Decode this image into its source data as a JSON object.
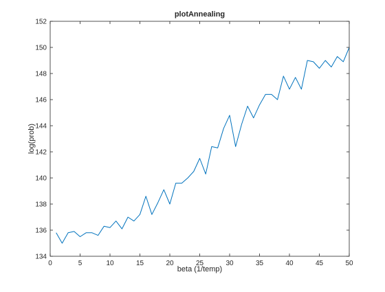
{
  "chart_data": {
    "type": "line",
    "title": "plotAnnealing",
    "xlabel": "beta (1/temp)",
    "ylabel": "log(prob)",
    "xlim": [
      0,
      50
    ],
    "ylim": [
      134,
      152
    ],
    "xticks": [
      0,
      5,
      10,
      15,
      20,
      25,
      30,
      35,
      40,
      45,
      50
    ],
    "yticks": [
      134,
      136,
      138,
      140,
      142,
      144,
      146,
      148,
      150,
      152
    ],
    "grid": false,
    "box": true,
    "series": [
      {
        "color": "#0072bd",
        "x": [
          1,
          2,
          3,
          4,
          5,
          6,
          7,
          8,
          9,
          10,
          11,
          12,
          13,
          14,
          15,
          16,
          17,
          18,
          19,
          20,
          21,
          22,
          23,
          24,
          25,
          26,
          27,
          28,
          29,
          30,
          31,
          32,
          33,
          34,
          35,
          36,
          37,
          38,
          39,
          40,
          41,
          42,
          43,
          44,
          45,
          46,
          47,
          48,
          49,
          50
        ],
        "y": [
          135.8,
          135.0,
          135.8,
          135.9,
          135.5,
          135.8,
          135.8,
          135.6,
          136.3,
          136.2,
          136.7,
          136.1,
          137.0,
          136.7,
          137.2,
          138.6,
          137.2,
          138.1,
          139.1,
          138.0,
          139.6,
          139.6,
          140.0,
          140.5,
          141.5,
          140.3,
          142.4,
          142.3,
          143.8,
          144.8,
          142.4,
          144.1,
          145.5,
          144.6,
          145.6,
          146.4,
          146.4,
          146.0,
          147.8,
          146.8,
          147.7,
          146.8,
          149.0,
          148.9,
          148.4,
          149.0,
          148.5,
          149.3,
          148.9,
          150.0
        ]
      }
    ]
  }
}
